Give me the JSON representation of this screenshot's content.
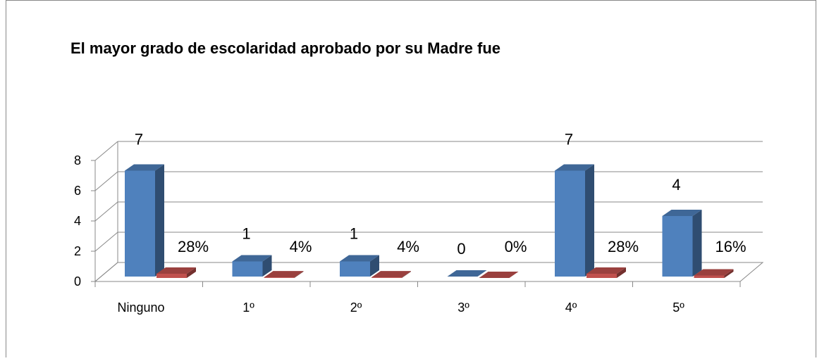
{
  "chart_data": {
    "type": "bar3d",
    "title": "El mayor grado de escolaridad aprobado por su Madre fue",
    "categories": [
      "Ninguno",
      "1º",
      "2º",
      "3º",
      "4º",
      "5º"
    ],
    "series": [
      {
        "color": "#4f81bd",
        "values": [
          7,
          1,
          1,
          0,
          7,
          4
        ]
      },
      {
        "color": "#c0504d",
        "values": [
          0.28,
          0.04,
          0.04,
          0,
          0.28,
          0.16
        ],
        "value_labels": [
          "28%",
          "4%",
          "4%",
          "0%",
          "28%",
          "16%"
        ]
      }
    ],
    "ylim": [
      0,
      8
    ],
    "yticks": [
      0,
      2,
      4,
      6,
      8
    ],
    "grid": true
  }
}
